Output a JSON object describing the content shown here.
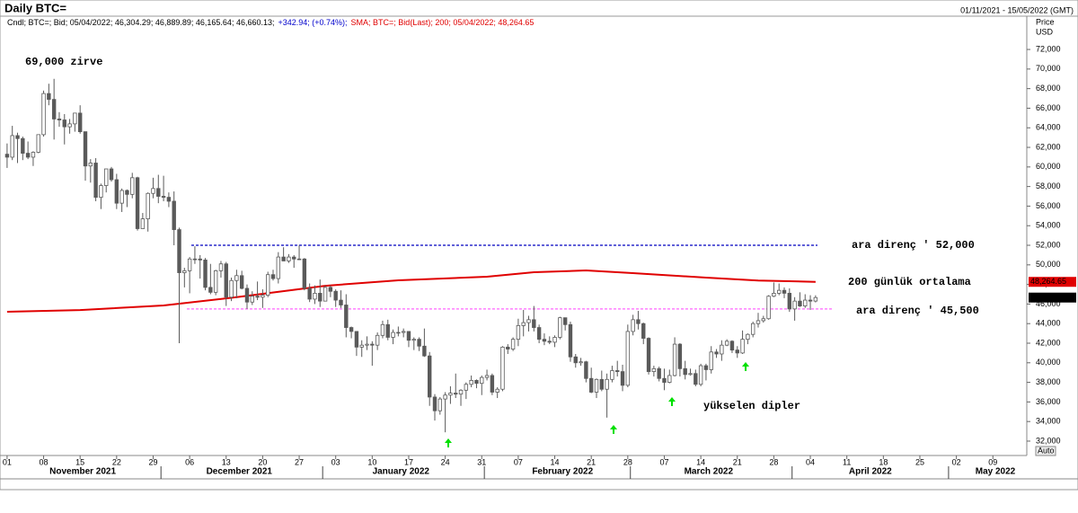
{
  "chart_data": {
    "type": "candlestick",
    "title": "Daily BTC=",
    "date_range": "01/11/2021 - 15/05/2022 (GMT)",
    "legend": [
      "Cndl; BTC=; Bid; 05/04/2022; 46,304.29; 46,889.89; 46,165.64; 46,660.13;",
      "+342.94; (+0.74%);",
      "SMA; BTC=; Bid(Last); 200; 05/04/2022; 48,264.65"
    ],
    "legend_colors": [
      "#000000",
      "#0000cc",
      "#e00000"
    ],
    "y_label": "Price",
    "y_unit": "USD",
    "scale_mode": "Auto",
    "up_color": "#ffffff",
    "down_color": "#5a5a5a",
    "x": [
      "2021-11-01",
      "2021-11-02",
      "2021-11-03",
      "2021-11-04",
      "2021-11-05",
      "2021-11-06",
      "2021-11-07",
      "2021-11-08",
      "2021-11-09",
      "2021-11-10",
      "2021-11-11",
      "2021-11-12",
      "2021-11-13",
      "2021-11-14",
      "2021-11-15",
      "2021-11-16",
      "2021-11-17",
      "2021-11-18",
      "2021-11-19",
      "2021-11-20",
      "2021-11-21",
      "2021-11-22",
      "2021-11-23",
      "2021-11-24",
      "2021-11-25",
      "2021-11-26",
      "2021-11-27",
      "2021-11-28",
      "2021-11-29",
      "2021-11-30",
      "2021-12-01",
      "2021-12-02",
      "2021-12-03",
      "2021-12-04",
      "2021-12-05",
      "2021-12-06",
      "2021-12-07",
      "2021-12-08",
      "2021-12-09",
      "2021-12-10",
      "2021-12-11",
      "2021-12-12",
      "2021-12-13",
      "2021-12-14",
      "2021-12-15",
      "2021-12-16",
      "2021-12-17",
      "2021-12-18",
      "2021-12-19",
      "2021-12-20",
      "2021-12-21",
      "2021-12-22",
      "2021-12-23",
      "2021-12-24",
      "2021-12-25",
      "2021-12-26",
      "2021-12-27",
      "2021-12-28",
      "2021-12-29",
      "2021-12-30",
      "2021-12-31",
      "2022-01-01",
      "2022-01-02",
      "2022-01-03",
      "2022-01-04",
      "2022-01-05",
      "2022-01-06",
      "2022-01-07",
      "2022-01-08",
      "2022-01-09",
      "2022-01-10",
      "2022-01-11",
      "2022-01-12",
      "2022-01-13",
      "2022-01-14",
      "2022-01-15",
      "2022-01-16",
      "2022-01-17",
      "2022-01-18",
      "2022-01-19",
      "2022-01-20",
      "2022-01-21",
      "2022-01-22",
      "2022-01-23",
      "2022-01-24",
      "2022-01-25",
      "2022-01-26",
      "2022-01-27",
      "2022-01-28",
      "2022-01-29",
      "2022-01-30",
      "2022-01-31",
      "2022-02-01",
      "2022-02-02",
      "2022-02-03",
      "2022-02-04",
      "2022-02-05",
      "2022-02-06",
      "2022-02-07",
      "2022-02-08",
      "2022-02-09",
      "2022-02-10",
      "2022-02-11",
      "2022-02-12",
      "2022-02-13",
      "2022-02-14",
      "2022-02-15",
      "2022-02-16",
      "2022-02-17",
      "2022-02-18",
      "2022-02-19",
      "2022-02-20",
      "2022-02-21",
      "2022-02-22",
      "2022-02-23",
      "2022-02-24",
      "2022-02-25",
      "2022-02-26",
      "2022-02-27",
      "2022-02-28",
      "2022-03-01",
      "2022-03-02",
      "2022-03-03",
      "2022-03-04",
      "2022-03-05",
      "2022-03-06",
      "2022-03-07",
      "2022-03-08",
      "2022-03-09",
      "2022-03-10",
      "2022-03-11",
      "2022-03-12",
      "2022-03-13",
      "2022-03-14",
      "2022-03-15",
      "2022-03-16",
      "2022-03-17",
      "2022-03-18",
      "2022-03-19",
      "2022-03-20",
      "2022-03-21",
      "2022-03-22",
      "2022-03-23",
      "2022-03-24",
      "2022-03-25",
      "2022-03-26",
      "2022-03-27",
      "2022-03-28",
      "2022-03-29",
      "2022-03-30",
      "2022-03-31",
      "2022-04-01",
      "2022-04-02",
      "2022-04-03",
      "2022-04-04",
      "2022-04-05"
    ],
    "open": [
      61300,
      61000,
      63200,
      62900,
      61400,
      61000,
      61500,
      63300,
      67500,
      66900,
      64900,
      64800,
      64100,
      64400,
      65500,
      63600,
      60100,
      60400,
      56900,
      58100,
      59800,
      58700,
      56300,
      57600,
      57200,
      58900,
      53700,
      54700,
      57300,
      57800,
      57000,
      56900,
      56500,
      53600,
      49200,
      49400,
      50600,
      50600,
      50500,
      47700,
      47200,
      49400,
      50100,
      46700,
      48400,
      48900,
      47600,
      46200,
      46800,
      46700,
      46900,
      49000,
      48600,
      50800,
      50400,
      50800,
      50600,
      50600,
      47600,
      46500,
      47100,
      46300,
      47700,
      47300,
      46400,
      45900,
      43600,
      43200,
      41600,
      41800,
      41900,
      41800,
      42800,
      43900,
      42600,
      43100,
      43100,
      43200,
      42300,
      42400,
      41700,
      40700,
      36500,
      35100,
      36300,
      36700,
      36900,
      36800,
      37200,
      37800,
      38200,
      37900,
      38500,
      38700,
      37000,
      37300,
      41600,
      41400,
      42400,
      43800,
      44100,
      44400,
      43600,
      42400,
      42200,
      42100,
      42600,
      44600,
      43900,
      40600,
      40000,
      40100,
      38400,
      37000,
      38300,
      37300,
      38300,
      39200,
      39100,
      37700,
      43200,
      44400,
      44000,
      42500,
      39100,
      39400,
      38400,
      38000,
      38700,
      41900,
      39400,
      38800,
      38900,
      37800,
      39700,
      39300,
      41100,
      40900,
      41800,
      42200,
      41300,
      41000,
      42400,
      42900,
      44000,
      44300,
      44500,
      46800,
      47100,
      47400,
      47100,
      45500,
      46300,
      45800,
      46400,
      46304.29
    ],
    "high": [
      62400,
      64200,
      63500,
      63100,
      62600,
      61600,
      63300,
      67800,
      68500,
      69000,
      65600,
      65400,
      64900,
      65500,
      66300,
      63600,
      60800,
      60900,
      58300,
      59800,
      60000,
      59300,
      57800,
      57700,
      59400,
      59000,
      55300,
      57400,
      58900,
      59200,
      59100,
      57400,
      57500,
      53800,
      49700,
      50800,
      51900,
      51000,
      50700,
      50100,
      49500,
      50400,
      50300,
      48700,
      49500,
      49400,
      48000,
      47300,
      48300,
      47500,
      49300,
      49500,
      51300,
      51800,
      51100,
      51000,
      52000,
      50700,
      48100,
      47900,
      48500,
      47900,
      47900,
      47500,
      47400,
      47000,
      43700,
      43200,
      42300,
      42700,
      42200,
      43100,
      44300,
      44400,
      43400,
      43700,
      43500,
      43200,
      42600,
      42600,
      43500,
      41100,
      36800,
      36500,
      37000,
      37600,
      38900,
      37300,
      38000,
      38700,
      38300,
      38700,
      39300,
      38900,
      37500,
      41700,
      41900,
      42600,
      44500,
      45400,
      44800,
      45800,
      43900,
      43000,
      42700,
      42800,
      44700,
      44600,
      44200,
      40900,
      40500,
      40200,
      39500,
      38400,
      39200,
      38900,
      39700,
      40200,
      39800,
      43900,
      44900,
      45300,
      44100,
      42600,
      39700,
      39600,
      39400,
      39300,
      42600,
      42000,
      40200,
      39400,
      39300,
      39900,
      39900,
      41700,
      41400,
      42300,
      42400,
      42300,
      41700,
      43300,
      43000,
      44200,
      45100,
      44800,
      46900,
      48200,
      48100,
      47700,
      47600,
      46700,
      47200,
      47000,
      46900,
      46889.89
    ],
    "low": [
      59900,
      60700,
      60400,
      60700,
      60800,
      60100,
      61400,
      63100,
      66300,
      62800,
      64100,
      62300,
      63400,
      63600,
      63400,
      58600,
      58400,
      56500,
      55700,
      57400,
      58500,
      55700,
      55400,
      55900,
      56800,
      53500,
      53700,
      53400,
      56800,
      56300,
      56500,
      55900,
      52000,
      42000,
      47700,
      47100,
      50100,
      48600,
      47400,
      47000,
      46900,
      48700,
      45800,
      46300,
      46600,
      47500,
      45500,
      45900,
      46400,
      45600,
      46700,
      48400,
      48100,
      50400,
      50200,
      49700,
      50500,
      47400,
      46200,
      46000,
      45700,
      46300,
      46700,
      45700,
      45600,
      42600,
      42500,
      40700,
      40600,
      41300,
      39700,
      41300,
      42500,
      42300,
      41900,
      42700,
      42600,
      41600,
      41300,
      41200,
      40600,
      35600,
      34100,
      34700,
      32900,
      35800,
      36400,
      35600,
      36300,
      37500,
      37400,
      36700,
      38200,
      36700,
      36400,
      37100,
      40900,
      41200,
      41700,
      42700,
      43200,
      43200,
      42000,
      41800,
      41900,
      41600,
      42400,
      43300,
      40100,
      39500,
      39700,
      38000,
      36900,
      36400,
      37100,
      34400,
      38000,
      38600,
      37100,
      37500,
      42800,
      43400,
      41900,
      38800,
      38600,
      38100,
      37200,
      37900,
      38600,
      38600,
      38300,
      38700,
      37600,
      37600,
      38200,
      38900,
      40500,
      40200,
      41700,
      41000,
      40500,
      40900,
      41900,
      42600,
      43600,
      44100,
      44400,
      46700,
      46900,
      46600,
      45200,
      44300,
      45700,
      45600,
      45400,
      46165.64
    ],
    "close": [
      61000,
      63200,
      62900,
      61400,
      61000,
      61500,
      63300,
      67500,
      66900,
      64900,
      64800,
      64100,
      64400,
      65500,
      63600,
      60100,
      60400,
      56900,
      58100,
      59800,
      58700,
      56300,
      57600,
      57200,
      58900,
      53700,
      54700,
      57300,
      57800,
      57000,
      56900,
      56500,
      53600,
      49200,
      49400,
      50600,
      50600,
      50500,
      47700,
      47200,
      49400,
      50100,
      46700,
      48400,
      48900,
      47600,
      46200,
      46800,
      46700,
      46900,
      49000,
      48600,
      50800,
      50400,
      50800,
      50600,
      50600,
      47600,
      46500,
      47100,
      46300,
      47700,
      47300,
      46400,
      45900,
      43600,
      43200,
      41600,
      41800,
      41900,
      41800,
      42800,
      43900,
      42600,
      43100,
      43100,
      43200,
      42300,
      42400,
      41700,
      40700,
      36500,
      35100,
      36300,
      36700,
      36900,
      36800,
      37200,
      37800,
      38200,
      37900,
      38500,
      38700,
      37000,
      37300,
      41600,
      41400,
      42400,
      43800,
      44100,
      44400,
      43600,
      42400,
      42200,
      42100,
      42600,
      44600,
      43900,
      40600,
      40000,
      40100,
      38400,
      37000,
      38300,
      37300,
      38300,
      39200,
      39100,
      37700,
      43200,
      44400,
      44000,
      42500,
      39100,
      39400,
      38400,
      38000,
      38700,
      41900,
      39400,
      38800,
      38900,
      37800,
      39700,
      39300,
      41100,
      40900,
      41800,
      42200,
      41300,
      41000,
      42400,
      42900,
      44000,
      44300,
      44500,
      46800,
      47100,
      47400,
      47100,
      45500,
      46300,
      45800,
      46400,
      46300,
      46660.13
    ],
    "last_close_label": "46,660.13",
    "sma": {
      "name": "200",
      "color": "#e00000",
      "x": [
        "2021-11-01",
        "2021-11-15",
        "2021-12-01",
        "2021-12-15",
        "2022-01-01",
        "2022-01-15",
        "2022-02-01",
        "2022-02-10",
        "2022-02-20",
        "2022-03-01",
        "2022-03-15",
        "2022-03-25",
        "2022-04-05"
      ],
      "values": [
        45210,
        45390,
        45850,
        46700,
        47860,
        48420,
        48790,
        49250,
        49430,
        49160,
        48700,
        48400,
        48264.65
      ],
      "last_label": "48,264.65"
    },
    "reference_lines": [
      {
        "value": 52000,
        "label": "ara direnç ' 52,000",
        "color": "#0000c0"
      },
      {
        "value": 45500,
        "label": "ara direnç ' 45,500",
        "color": "#ff66ff"
      }
    ],
    "sma_label": "200 günlük ortalama",
    "annotations": [
      {
        "text": "69,000 zirve",
        "color": "#0000c0"
      },
      {
        "text": "yükselen dipler",
        "color": "#00e000"
      }
    ],
    "ylim": [
      30530,
      75400
    ],
    "yticks": [
      {
        "value": 32000,
        "label": "32,000"
      },
      {
        "value": 34000,
        "label": "34,000"
      },
      {
        "value": 36000,
        "label": "36,000"
      },
      {
        "value": 38000,
        "label": "38,000"
      },
      {
        "value": 40000,
        "label": "40,000"
      },
      {
        "value": 42000,
        "label": "42,000"
      },
      {
        "value": 44000,
        "label": "44,000"
      },
      {
        "value": 46000,
        "label": "46,000"
      },
      {
        "value": 48000,
        "label": "48,000"
      },
      {
        "value": 50000,
        "label": "50,000"
      },
      {
        "value": 52000,
        "label": "52,000"
      },
      {
        "value": 54000,
        "label": "54,000"
      },
      {
        "value": 56000,
        "label": "56,000"
      },
      {
        "value": 58000,
        "label": "58,000"
      },
      {
        "value": 60000,
        "label": "60,000"
      },
      {
        "value": 62000,
        "label": "62,000"
      },
      {
        "value": 64000,
        "label": "64,000"
      },
      {
        "value": 66000,
        "label": "66,000"
      },
      {
        "value": 68000,
        "label": "68,000"
      },
      {
        "value": 70000,
        "label": "70,000"
      },
      {
        "value": 72000,
        "label": "72,000"
      }
    ],
    "xlim": [
      "2021-11-01",
      "2022-05-15"
    ],
    "xticks": [
      {
        "value": "2021-11-01",
        "label": "01"
      },
      {
        "value": "2021-11-08",
        "label": "08"
      },
      {
        "value": "2021-11-15",
        "label": "15"
      },
      {
        "value": "2021-11-22",
        "label": "22"
      },
      {
        "value": "2021-11-29",
        "label": "29"
      },
      {
        "value": "2021-12-06",
        "label": "06"
      },
      {
        "value": "2021-12-13",
        "label": "13"
      },
      {
        "value": "2021-12-20",
        "label": "20"
      },
      {
        "value": "2021-12-27",
        "label": "27"
      },
      {
        "value": "2022-01-03",
        "label": "03"
      },
      {
        "value": "2022-01-10",
        "label": "10"
      },
      {
        "value": "2022-01-17",
        "label": "17"
      },
      {
        "value": "2022-01-24",
        "label": "24"
      },
      {
        "value": "2022-01-31",
        "label": "31"
      },
      {
        "value": "2022-02-07",
        "label": "07"
      },
      {
        "value": "2022-02-14",
        "label": "14"
      },
      {
        "value": "2022-02-21",
        "label": "21"
      },
      {
        "value": "2022-02-28",
        "label": "28"
      },
      {
        "value": "2022-03-07",
        "label": "07"
      },
      {
        "value": "2022-03-14",
        "label": "14"
      },
      {
        "value": "2022-03-21",
        "label": "21"
      },
      {
        "value": "2022-03-28",
        "label": "28"
      },
      {
        "value": "2022-04-04",
        "label": "04"
      },
      {
        "value": "2022-04-11",
        "label": "11"
      },
      {
        "value": "2022-04-18",
        "label": "18"
      },
      {
        "value": "2022-04-25",
        "label": "25"
      },
      {
        "value": "2022-05-02",
        "label": "02"
      },
      {
        "value": "2022-05-09",
        "label": "09"
      }
    ],
    "month_ticks": [
      {
        "value": "2021-11-01",
        "label": "November 2021"
      },
      {
        "value": "2021-12-01",
        "label": "December 2021"
      },
      {
        "value": "2022-01-01",
        "label": "January 2022"
      },
      {
        "value": "2022-02-01",
        "label": "February 2022"
      },
      {
        "value": "2022-03-01",
        "label": "March 2022"
      },
      {
        "value": "2022-04-01",
        "label": "April 2022"
      },
      {
        "value": "2022-05-01",
        "label": "May 2022"
      }
    ]
  }
}
